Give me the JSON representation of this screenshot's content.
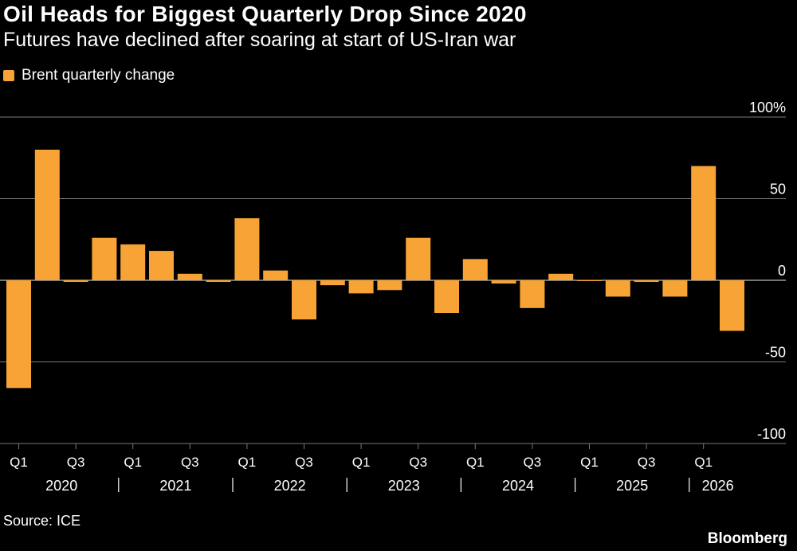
{
  "title": "Oil Heads for Biggest Quarterly Drop Since 2020",
  "subtitle": "Futures have declined after soaring at start of US-Iran war",
  "source": "Source: ICE",
  "brand": "Bloomberg",
  "colors": {
    "bar": "#F7A336",
    "grid": "#7a7a7a",
    "zero": "#e6e6e6",
    "text": "#ffffff",
    "background": "#000000"
  },
  "chart_data": {
    "type": "bar",
    "series": [
      {
        "name": "Brent quarterly change",
        "values": [
          -66,
          80,
          -1,
          26,
          22,
          18,
          4,
          -1,
          38,
          6,
          -24,
          -3,
          -8,
          -6,
          26,
          -20,
          13,
          -2,
          -17,
          4,
          0,
          -10,
          -1,
          -10,
          70,
          -31
        ]
      }
    ],
    "categories": [
      "2020 Q1",
      "2020 Q2",
      "2020 Q3",
      "2020 Q4",
      "2021 Q1",
      "2021 Q2",
      "2021 Q3",
      "2021 Q4",
      "2022 Q1",
      "2022 Q2",
      "2022 Q3",
      "2022 Q4",
      "2023 Q1",
      "2023 Q2",
      "2023 Q3",
      "2023 Q4",
      "2024 Q1",
      "2024 Q2",
      "2024 Q3",
      "2024 Q4",
      "2025 Q1",
      "2025 Q2",
      "2025 Q3",
      "2025 Q4",
      "2026 Q1",
      "2026 Q2"
    ],
    "xtick_labels": [
      "Q1",
      "Q3",
      "Q1",
      "Q3",
      "Q1",
      "Q3",
      "Q1",
      "Q3",
      "Q1",
      "Q3",
      "Q1",
      "Q3",
      "Q1"
    ],
    "xtick_indices": [
      0,
      2,
      4,
      6,
      8,
      10,
      12,
      14,
      16,
      18,
      20,
      22,
      24
    ],
    "year_labels": [
      "2020",
      "2021",
      "2022",
      "2023",
      "2024",
      "2025",
      "2026"
    ],
    "ylim": [
      -100,
      100
    ],
    "yticks": [
      100,
      50,
      0,
      -50,
      -100
    ],
    "ytick_labels": [
      "100%",
      "50",
      "0",
      "-50",
      "-100"
    ],
    "grid": true,
    "legend": "top-left"
  }
}
